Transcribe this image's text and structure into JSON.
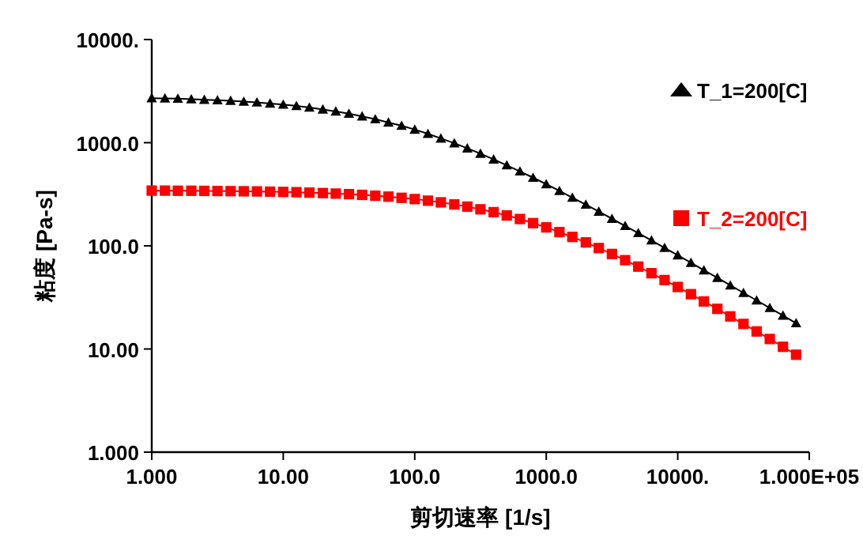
{
  "chart_data": {
    "type": "line",
    "xlabel": "剪切速率 [1/s]",
    "ylabel": "粘度 [Pa-s]",
    "log": "xy",
    "x": [
      1,
      1.26,
      1.58,
      2,
      2.51,
      3.16,
      3.98,
      5.01,
      6.31,
      7.94,
      10,
      12.6,
      15.8,
      20,
      25.1,
      31.6,
      39.8,
      50.1,
      63.1,
      79.4,
      100,
      126,
      158,
      200,
      251,
      316,
      398,
      501,
      631,
      794,
      1000,
      1260,
      1580,
      2000,
      2510,
      3160,
      3980,
      5010,
      6310,
      7940,
      10000,
      12600,
      15800,
      20000,
      25100,
      31600,
      39800,
      50100,
      63100,
      79400
    ],
    "series": [
      {
        "name": "T_1=200[C]",
        "color": "#000000",
        "marker": "triangle",
        "values": [
          2700,
          2690,
          2670,
          2640,
          2610,
          2580,
          2550,
          2500,
          2460,
          2400,
          2340,
          2270,
          2190,
          2100,
          2010,
          1910,
          1800,
          1690,
          1570,
          1460,
          1340,
          1220,
          1100,
          989,
          882,
          782,
          689,
          604,
          527,
          458,
          396,
          341,
          293,
          251,
          215,
          183,
          156,
          133,
          113,
          95.6,
          81,
          68.6,
          58,
          49,
          41.4,
          35,
          29.6,
          25,
          21.1,
          17.8
        ]
      },
      {
        "name": "T_2=200[C]",
        "color": "#ff0000",
        "marker": "square",
        "values": [
          343,
          343,
          342,
          342,
          341,
          340,
          339,
          338,
          337,
          335,
          333,
          331,
          328,
          325,
          321,
          317,
          312,
          306,
          300,
          292,
          284,
          274,
          264,
          252,
          240,
          226,
          212,
          197,
          182,
          166,
          151,
          136,
          122,
          108,
          95.2,
          83.4,
          72.6,
          62.9,
          54.3,
          46.6,
          39.9,
          34,
          28.9,
          24.5,
          20.7,
          17.5,
          14.8,
          12.5,
          10.5,
          8.8
        ]
      }
    ],
    "xlim": [
      1,
      100000
    ],
    "ylim": [
      1,
      10000
    ],
    "xticks": [
      {
        "value": 1,
        "label": "1.000"
      },
      {
        "value": 10,
        "label": "10.00"
      },
      {
        "value": 100,
        "label": "100.0"
      },
      {
        "value": 1000,
        "label": "1000.0"
      },
      {
        "value": 10000,
        "label": "10000."
      },
      {
        "value": 100000,
        "label": "1.000E+05"
      }
    ],
    "yticks": [
      {
        "value": 1,
        "label": "1.000"
      },
      {
        "value": 10,
        "label": "10.00"
      },
      {
        "value": 100,
        "label": "100.0"
      },
      {
        "value": 1000,
        "label": "1000.0"
      },
      {
        "value": 10000,
        "label": "10000."
      }
    ],
    "legend": "top right",
    "line_style": "solid",
    "grid": false
  }
}
